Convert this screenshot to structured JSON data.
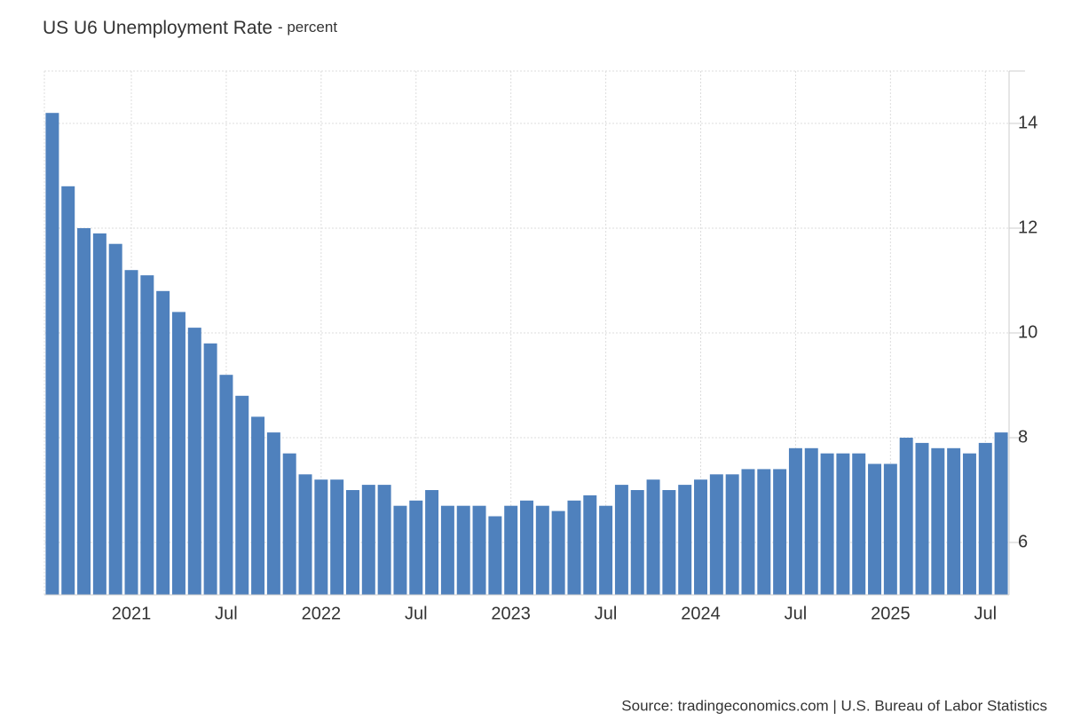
{
  "chart_data": {
    "type": "bar",
    "title": "US U6 Unemployment Rate",
    "subtitle": "- percent",
    "source": "Source: tradingeconomics.com | U.S. Bureau of Labor Statistics",
    "categories": [
      null,
      null,
      null,
      null,
      null,
      "2021",
      null,
      null,
      null,
      null,
      null,
      "Jul",
      null,
      null,
      null,
      null,
      null,
      "2022",
      null,
      null,
      null,
      null,
      null,
      "Jul",
      null,
      null,
      null,
      null,
      null,
      "2023",
      null,
      null,
      null,
      null,
      null,
      "Jul",
      null,
      null,
      null,
      null,
      null,
      "2024",
      null,
      null,
      null,
      null,
      null,
      "Jul",
      null,
      null,
      null,
      null,
      null,
      "2025",
      null,
      null,
      null,
      null,
      null,
      "Jul",
      null
    ],
    "values": [
      14.2,
      12.8,
      12.0,
      11.9,
      11.7,
      11.2,
      11.1,
      10.8,
      10.4,
      10.1,
      9.8,
      9.2,
      8.8,
      8.4,
      8.1,
      7.7,
      7.3,
      7.2,
      7.2,
      7.0,
      7.1,
      7.1,
      6.7,
      6.8,
      7.0,
      6.7,
      6.7,
      6.7,
      6.5,
      6.7,
      6.8,
      6.7,
      6.6,
      6.8,
      6.9,
      6.7,
      7.1,
      7.0,
      7.2,
      7.0,
      7.1,
      7.2,
      7.3,
      7.3,
      7.4,
      7.4,
      7.4,
      7.8,
      7.8,
      7.7,
      7.7,
      7.7,
      7.5,
      7.5,
      8.0,
      7.9,
      7.8,
      7.8,
      7.7,
      7.9,
      8.1
    ],
    "color": "#4f81bd",
    "ylim": [
      5,
      15
    ],
    "yticks": [
      6,
      8,
      10,
      12,
      14
    ],
    "grid": true,
    "y_axis_side": "right"
  }
}
